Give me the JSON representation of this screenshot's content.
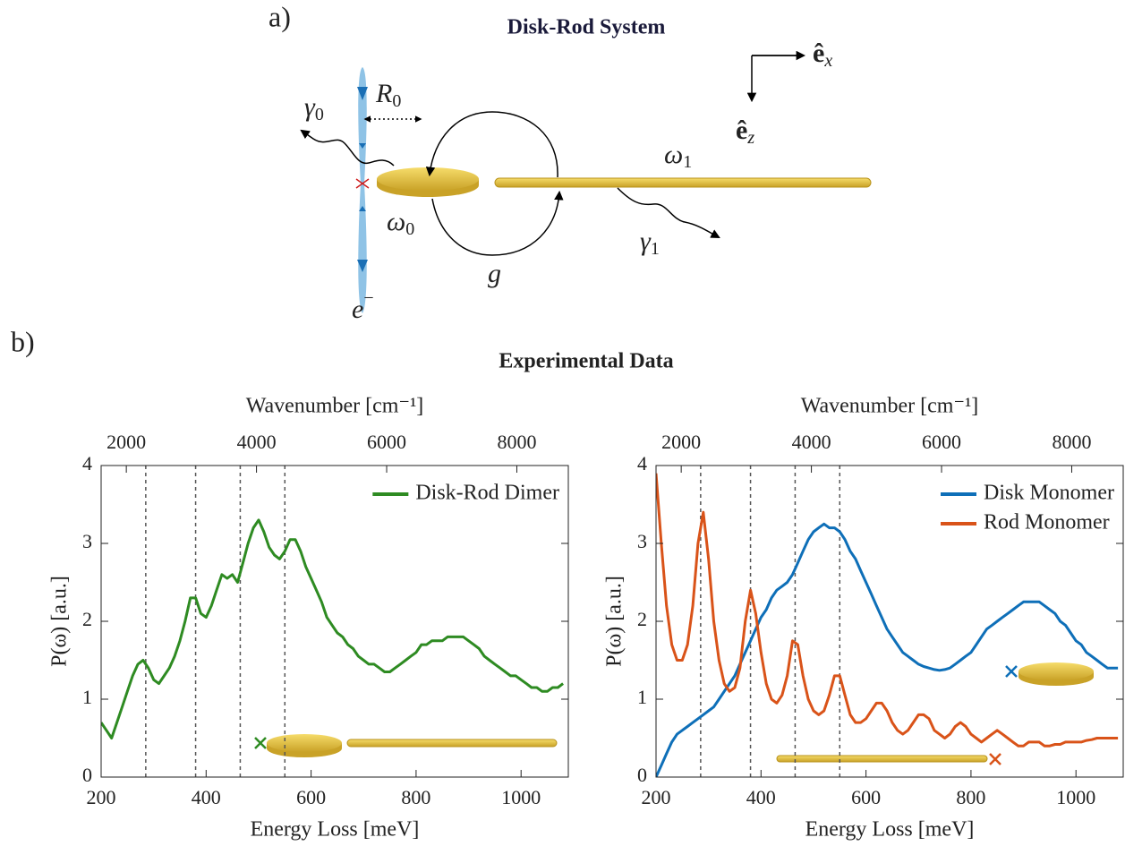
{
  "diagram": {
    "panel_label": "a)",
    "title": "Disk-Rod System",
    "labels": {
      "gamma0": {
        "text": "γ",
        "sub": "0"
      },
      "R0": {
        "text": "R",
        "sub": "0"
      },
      "omega0": {
        "text": "ω",
        "sub": "0"
      },
      "omega1": {
        "text": "ω",
        "sub": "1"
      },
      "gamma1": {
        "text": "γ",
        "sub": "1"
      },
      "g": {
        "text": "g"
      },
      "electron": {
        "text": "e",
        "sup": "−"
      },
      "ex": {
        "text": "ê",
        "sub": "x"
      },
      "ez": {
        "text": "ê",
        "sub": "z"
      }
    }
  },
  "figure_b": {
    "panel_label": "b)",
    "title": "Experimental Data"
  },
  "chart_data": [
    {
      "type": "line",
      "xlabel": "Energy Loss [meV]",
      "ylabel": "P(ω) [a.u.]",
      "x2label": "Wavenumber [cm⁻¹]",
      "xlim": [
        200,
        1090
      ],
      "ylim": [
        0,
        4
      ],
      "xticks": [
        200,
        400,
        600,
        800,
        1000
      ],
      "yticks": [
        0,
        1,
        2,
        3,
        4
      ],
      "x2lim": [
        1613,
        8791
      ],
      "x2ticks": [
        2000,
        4000,
        6000,
        8000
      ],
      "vlines": [
        285,
        380,
        465,
        550
      ],
      "legend": "upper right",
      "x": [
        200,
        210,
        220,
        230,
        240,
        250,
        260,
        270,
        280,
        290,
        300,
        310,
        320,
        330,
        340,
        350,
        360,
        370,
        380,
        390,
        400,
        410,
        420,
        430,
        440,
        450,
        460,
        470,
        480,
        490,
        500,
        510,
        520,
        530,
        540,
        550,
        560,
        570,
        580,
        590,
        600,
        610,
        620,
        630,
        640,
        650,
        660,
        670,
        680,
        690,
        700,
        710,
        720,
        730,
        740,
        750,
        760,
        770,
        780,
        790,
        800,
        810,
        820,
        830,
        840,
        850,
        860,
        870,
        880,
        890,
        900,
        910,
        920,
        930,
        940,
        950,
        960,
        970,
        980,
        990,
        1000,
        1010,
        1020,
        1030,
        1040,
        1050,
        1060,
        1070,
        1080
      ],
      "series": [
        {
          "name": "Disk-Rod Dimer",
          "color": "#2e8b22",
          "values": [
            0.7,
            0.6,
            0.5,
            0.7,
            0.9,
            1.1,
            1.3,
            1.45,
            1.5,
            1.4,
            1.25,
            1.2,
            1.3,
            1.4,
            1.55,
            1.75,
            2.0,
            2.3,
            2.3,
            2.1,
            2.05,
            2.2,
            2.4,
            2.6,
            2.55,
            2.6,
            2.5,
            2.75,
            3.0,
            3.2,
            3.3,
            3.15,
            2.95,
            2.85,
            2.8,
            2.9,
            3.05,
            3.05,
            2.9,
            2.7,
            2.55,
            2.4,
            2.25,
            2.05,
            1.95,
            1.85,
            1.8,
            1.7,
            1.65,
            1.55,
            1.5,
            1.45,
            1.45,
            1.4,
            1.35,
            1.35,
            1.4,
            1.45,
            1.5,
            1.55,
            1.6,
            1.7,
            1.7,
            1.75,
            1.75,
            1.75,
            1.8,
            1.8,
            1.8,
            1.8,
            1.75,
            1.7,
            1.65,
            1.55,
            1.5,
            1.45,
            1.4,
            1.35,
            1.3,
            1.3,
            1.25,
            1.2,
            1.15,
            1.15,
            1.1,
            1.1,
            1.15,
            1.15,
            1.2
          ]
        }
      ]
    },
    {
      "type": "line",
      "xlabel": "Energy Loss [meV]",
      "ylabel": "P(ω) [a.u.]",
      "x2label": "Wavenumber [cm⁻¹]",
      "xlim": [
        200,
        1090
      ],
      "ylim": [
        0,
        4
      ],
      "xticks": [
        200,
        400,
        600,
        800,
        1000
      ],
      "yticks": [
        0,
        1,
        2,
        3,
        4
      ],
      "x2lim": [
        1613,
        8791
      ],
      "x2ticks": [
        2000,
        4000,
        6000,
        8000
      ],
      "vlines": [
        285,
        380,
        465,
        550
      ],
      "legend": "upper right",
      "x": [
        200,
        210,
        220,
        230,
        240,
        250,
        260,
        270,
        280,
        290,
        300,
        310,
        320,
        330,
        340,
        350,
        360,
        370,
        380,
        390,
        400,
        410,
        420,
        430,
        440,
        450,
        460,
        470,
        480,
        490,
        500,
        510,
        520,
        530,
        540,
        550,
        560,
        570,
        580,
        590,
        600,
        610,
        620,
        630,
        640,
        650,
        660,
        670,
        680,
        690,
        700,
        710,
        720,
        730,
        740,
        750,
        760,
        770,
        780,
        790,
        800,
        810,
        820,
        830,
        840,
        850,
        860,
        870,
        880,
        890,
        900,
        910,
        920,
        930,
        940,
        950,
        960,
        970,
        980,
        990,
        1000,
        1010,
        1020,
        1030,
        1040,
        1050,
        1060,
        1070,
        1080
      ],
      "series": [
        {
          "name": "Disk Monomer",
          "color": "#0e6fb8",
          "values": [
            0.0,
            0.15,
            0.3,
            0.45,
            0.55,
            0.6,
            0.65,
            0.7,
            0.75,
            0.8,
            0.85,
            0.9,
            1.0,
            1.1,
            1.2,
            1.3,
            1.45,
            1.6,
            1.75,
            1.9,
            2.05,
            2.15,
            2.3,
            2.4,
            2.45,
            2.5,
            2.6,
            2.75,
            2.9,
            3.05,
            3.15,
            3.2,
            3.25,
            3.2,
            3.2,
            3.15,
            3.05,
            2.9,
            2.8,
            2.65,
            2.5,
            2.35,
            2.2,
            2.05,
            1.9,
            1.8,
            1.7,
            1.6,
            1.55,
            1.5,
            1.45,
            1.42,
            1.4,
            1.38,
            1.37,
            1.38,
            1.4,
            1.45,
            1.5,
            1.55,
            1.6,
            1.7,
            1.8,
            1.9,
            1.95,
            2.0,
            2.05,
            2.1,
            2.15,
            2.2,
            2.25,
            2.25,
            2.25,
            2.25,
            2.2,
            2.15,
            2.1,
            2.0,
            1.95,
            1.85,
            1.75,
            1.7,
            1.6,
            1.55,
            1.5,
            1.45,
            1.4,
            1.4,
            1.4
          ]
        },
        {
          "name": "Rod Monomer",
          "color": "#d95319",
          "values": [
            3.9,
            3.0,
            2.2,
            1.7,
            1.5,
            1.5,
            1.7,
            2.2,
            3.0,
            3.4,
            2.8,
            2.0,
            1.5,
            1.2,
            1.1,
            1.15,
            1.4,
            2.0,
            2.4,
            2.1,
            1.6,
            1.2,
            1.0,
            0.95,
            1.05,
            1.3,
            1.75,
            1.7,
            1.3,
            1.0,
            0.85,
            0.8,
            0.85,
            1.05,
            1.3,
            1.3,
            1.05,
            0.8,
            0.7,
            0.7,
            0.75,
            0.85,
            0.95,
            0.95,
            0.85,
            0.7,
            0.6,
            0.55,
            0.6,
            0.7,
            0.8,
            0.8,
            0.75,
            0.6,
            0.55,
            0.5,
            0.55,
            0.65,
            0.7,
            0.65,
            0.55,
            0.5,
            0.45,
            0.5,
            0.55,
            0.6,
            0.55,
            0.5,
            0.45,
            0.4,
            0.4,
            0.45,
            0.45,
            0.45,
            0.4,
            0.4,
            0.42,
            0.42,
            0.45,
            0.45,
            0.45,
            0.45,
            0.47,
            0.48,
            0.5,
            0.5,
            0.5,
            0.5,
            0.5
          ]
        }
      ]
    }
  ]
}
